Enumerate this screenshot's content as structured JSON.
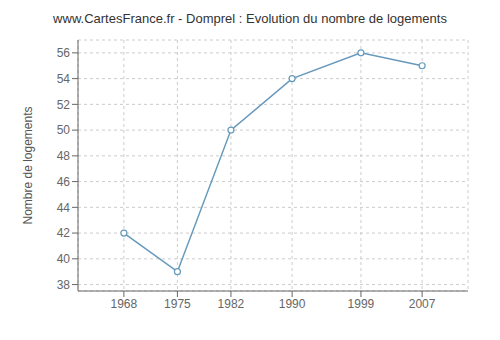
{
  "chart_data": {
    "type": "line",
    "title": "www.CartesFrance.fr - Domprel : Evolution du nombre de logements",
    "ylabel": "Nombre de logements",
    "x": [
      1968,
      1975,
      1982,
      1990,
      1999,
      2007
    ],
    "values": [
      42,
      39,
      50,
      54,
      56,
      55
    ],
    "color": "#6699bb",
    "marker": "circle",
    "xlim": [
      1962,
      2013
    ],
    "xticks": [
      1968,
      1975,
      1982,
      1990,
      1999,
      2007
    ],
    "ylim": [
      37.5,
      57.0
    ],
    "yticks": [
      38,
      40,
      42,
      44,
      46,
      48,
      50,
      52,
      54,
      56
    ],
    "grid": true
  }
}
